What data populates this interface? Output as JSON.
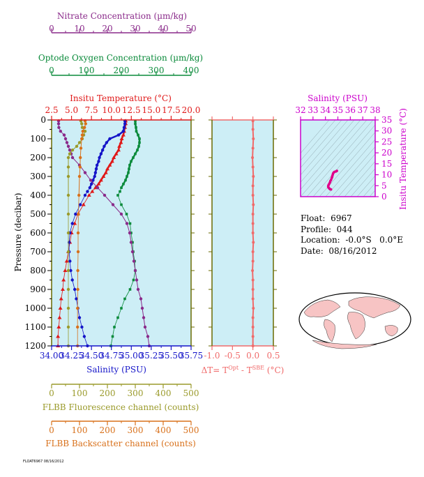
{
  "colors": {
    "nitrate": "#8a2a8a",
    "oxygen": "#0a8a3a",
    "temperature": "#e01818",
    "salinity": "#1414c8",
    "fluorescence": "#9a9a2a",
    "backscatter": "#d8701a",
    "delta": "#f06a6a",
    "ts": "#cc00cc",
    "panel_bg": "#cdeef6",
    "land": "#f7c4c4"
  },
  "info": {
    "float_label": "Float:",
    "float_value": "6967",
    "profile_label": "Profile:",
    "profile_value": "044",
    "location_label": "Location:",
    "location_value": "-0.0°S   0.0°E",
    "date_label": "Date:",
    "date_value": "08/16/2012"
  },
  "footer": "FLOAT6967 08/16/2012",
  "chart_data": [
    {
      "type": "line",
      "name": "main_profile_panel",
      "ylabel": "Pressure (decibar)",
      "ylim": [
        1200,
        0
      ],
      "yticks": [
        "0",
        "100",
        "200",
        "300",
        "400",
        "500",
        "600",
        "700",
        "800",
        "900",
        "1000",
        "1100",
        "1200"
      ],
      "axes": {
        "nitrate": {
          "title": "Nitrate Concentration (µm/kg)",
          "lim": [
            0,
            50
          ],
          "ticks": [
            "0",
            "10",
            "20",
            "30",
            "40",
            "50"
          ]
        },
        "oxygen": {
          "title": "Optode Oxygen Concentration (µm/kg)",
          "lim": [
            0,
            400
          ],
          "ticks": [
            "0",
            "100",
            "200",
            "300",
            "400"
          ]
        },
        "temperature": {
          "title": "Insitu Temperature (°C)",
          "lim": [
            2.5,
            20.0
          ],
          "ticks": [
            "2.5",
            "5.0",
            "7.5",
            "10.0",
            "12.5",
            "15.0",
            "17.5",
            "20.0"
          ]
        },
        "salinity": {
          "title": "Salinity (PSU)",
          "lim": [
            34.0,
            35.75
          ],
          "ticks": [
            "34.00",
            "34.25",
            "34.50",
            "34.75",
            "35.00",
            "35.25",
            "35.50",
            "35.75"
          ]
        },
        "fluorescence": {
          "title": "FLBB Fluorescence channel (counts)",
          "lim": [
            0,
            500
          ],
          "ticks": [
            "0",
            "100",
            "200",
            "300",
            "400",
            "500"
          ]
        },
        "backscatter": {
          "title": "FLBB Backscatter channel (counts)",
          "lim": [
            0,
            500
          ],
          "ticks": [
            "0",
            "100",
            "200",
            "300",
            "400",
            "500"
          ]
        }
      },
      "series": [
        {
          "key": "temperature",
          "pressure": [
            5,
            20,
            40,
            60,
            80,
            100,
            120,
            140,
            160,
            180,
            200,
            220,
            240,
            260,
            280,
            300,
            320,
            340,
            360,
            380,
            400,
            450,
            500,
            550,
            600,
            650,
            700,
            750,
            800,
            850,
            900,
            950,
            1000,
            1050,
            1100,
            1150,
            1200
          ],
          "values": [
            11.8,
            11.8,
            11.7,
            11.6,
            11.5,
            11.3,
            11.2,
            11.0,
            10.9,
            10.6,
            10.3,
            10.1,
            9.8,
            9.5,
            9.3,
            9.0,
            8.7,
            8.4,
            8.0,
            7.6,
            7.2,
            6.5,
            5.8,
            5.4,
            5.0,
            4.8,
            4.6,
            4.4,
            4.2,
            4.0,
            3.9,
            3.7,
            3.6,
            3.5,
            3.4,
            3.3,
            3.3
          ]
        },
        {
          "key": "salinity",
          "pressure": [
            5,
            20,
            40,
            60,
            80,
            100,
            120,
            140,
            160,
            180,
            200,
            220,
            240,
            260,
            280,
            300,
            320,
            340,
            360,
            380,
            400,
            450,
            500,
            550,
            600,
            650,
            700,
            750,
            800,
            850,
            900,
            950,
            1000,
            1050,
            1100,
            1150,
            1200
          ],
          "values": [
            34.92,
            34.92,
            34.91,
            34.9,
            34.84,
            34.73,
            34.69,
            34.66,
            34.64,
            34.62,
            34.6,
            34.59,
            34.57,
            34.56,
            34.55,
            34.54,
            34.52,
            34.5,
            34.48,
            34.45,
            34.42,
            34.36,
            34.3,
            34.26,
            34.23,
            34.22,
            34.22,
            34.23,
            34.24,
            34.26,
            34.29,
            34.31,
            34.33,
            34.35,
            34.38,
            34.41,
            34.45
          ]
        },
        {
          "key": "oxygen",
          "pressure": [
            5,
            20,
            40,
            60,
            80,
            100,
            120,
            140,
            160,
            180,
            200,
            220,
            240,
            260,
            280,
            300,
            320,
            340,
            360,
            380,
            400,
            450,
            500,
            550,
            600,
            650,
            700,
            750,
            800,
            850,
            900,
            950,
            1000,
            1050,
            1100,
            1150,
            1200
          ],
          "values": [
            240,
            240,
            242,
            243,
            248,
            252,
            252,
            250,
            246,
            240,
            234,
            228,
            224,
            222,
            220,
            216,
            212,
            206,
            200,
            196,
            190,
            200,
            215,
            225,
            228,
            232,
            234,
            238,
            240,
            235,
            225,
            210,
            200,
            190,
            180,
            175,
            170
          ]
        },
        {
          "key": "nitrate",
          "pressure": [
            5,
            20,
            40,
            60,
            80,
            100,
            120,
            140,
            160,
            180,
            200,
            240,
            280,
            320,
            360,
            400,
            450,
            500,
            550,
            600,
            650,
            700,
            750,
            800,
            850,
            900,
            950,
            1000,
            1050,
            1100,
            1150,
            1200
          ],
          "values": [
            2.5,
            2.5,
            2.6,
            3.2,
            4.5,
            5.0,
            5.5,
            6.0,
            6.5,
            7.0,
            7.5,
            10.0,
            12.0,
            14.0,
            16.5,
            19.0,
            22.0,
            25.0,
            27.0,
            28.0,
            28.5,
            29.0,
            29.5,
            30.0,
            30.5,
            31.0,
            32.0,
            32.5,
            33.0,
            33.5,
            34.5,
            35.0
          ]
        },
        {
          "key": "fluorescence",
          "pressure": [
            5,
            20,
            40,
            60,
            80,
            100,
            120,
            140,
            160,
            180,
            200,
            250,
            300,
            400,
            500,
            600,
            700,
            800,
            900,
            1000,
            1100,
            1200
          ],
          "values": [
            105,
            108,
            110,
            120,
            115,
            110,
            100,
            90,
            75,
            65,
            60,
            60,
            60,
            60,
            60,
            60,
            60,
            60,
            60,
            60,
            60,
            60
          ]
        },
        {
          "key": "backscatter",
          "pressure": [
            5,
            20,
            40,
            60,
            80,
            100,
            150,
            200,
            250,
            300,
            400,
            500,
            600,
            700,
            800,
            900,
            1000,
            1100,
            1200
          ],
          "values": [
            120,
            122,
            118,
            112,
            110,
            108,
            105,
            103,
            102,
            100,
            98,
            96,
            95,
            95,
            94,
            94,
            93,
            93,
            93
          ]
        }
      ]
    },
    {
      "type": "line",
      "name": "delta_t_panel",
      "xlabel": "ΔT= T^Opt - T^SBE (°C)",
      "xlim": [
        -1.0,
        0.5
      ],
      "xticks": [
        "-1.0",
        "-0.5",
        "0.0",
        "0.5"
      ],
      "series": [
        {
          "pressure": [
            5,
            50,
            100,
            150,
            200,
            250,
            300,
            350,
            400,
            450,
            500,
            550,
            600,
            650,
            700,
            750,
            800,
            850,
            900,
            950,
            1000,
            1050,
            1100,
            1150,
            1200
          ],
          "values": [
            0.0,
            0.0,
            0.01,
            0.0,
            -0.01,
            0.0,
            0.01,
            0.0,
            0.0,
            0.01,
            0.0,
            0.0,
            0.0,
            0.01,
            0.0,
            0.0,
            -0.01,
            0.0,
            0.0,
            0.0,
            0.01,
            0.0,
            0.0,
            0.0,
            0.0
          ]
        }
      ]
    },
    {
      "type": "scatter",
      "name": "ts_diagram",
      "title": "Salinity (PSU)",
      "xlim": [
        32,
        38
      ],
      "xticks": [
        "32",
        "33",
        "34",
        "35",
        "36",
        "37",
        "38"
      ],
      "ylabel": "Insitu Temperature (°C)",
      "ylim": [
        0,
        35
      ],
      "yticks": [
        "0",
        "5",
        "10",
        "15",
        "20",
        "25",
        "30",
        "35"
      ],
      "series": [
        {
          "salinity": [
            34.92,
            34.91,
            34.84,
            34.73,
            34.66,
            34.62,
            34.59,
            34.56,
            34.54,
            34.5,
            34.45,
            34.4,
            34.36,
            34.3,
            34.26,
            34.23,
            34.22,
            34.24,
            34.29,
            34.33,
            34.38,
            34.45
          ],
          "temperature": [
            11.8,
            11.7,
            11.5,
            11.3,
            11.0,
            10.6,
            10.1,
            9.5,
            9.0,
            8.4,
            7.6,
            7.2,
            6.5,
            5.8,
            5.4,
            5.0,
            4.6,
            4.2,
            3.9,
            3.6,
            3.4,
            3.3
          ]
        }
      ]
    }
  ]
}
